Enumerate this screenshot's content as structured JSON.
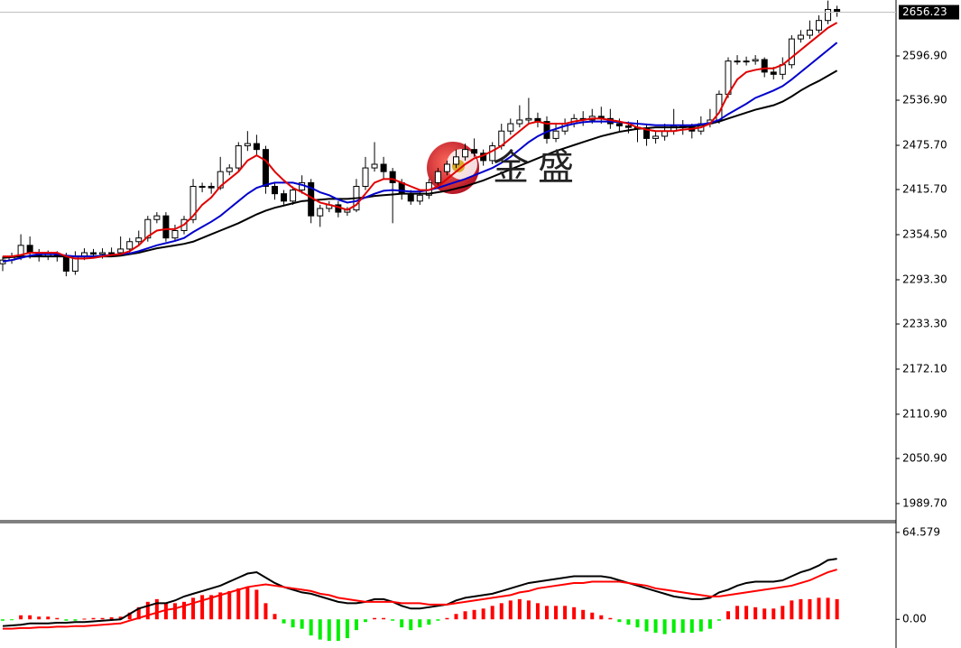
{
  "chart_data": [
    {
      "type": "candlestick",
      "ylim": [
        1966.4,
        2672.8
      ],
      "yticks": [
        {
          "value": 2596.9,
          "label": "2596.90"
        },
        {
          "value": 2536.9,
          "label": "2536.90"
        },
        {
          "value": 2475.7,
          "label": "2475.70"
        },
        {
          "value": 2415.7,
          "label": "2415.70"
        },
        {
          "value": 2354.5,
          "label": "2354.50"
        },
        {
          "value": 2293.3,
          "label": "2293.30"
        },
        {
          "value": 2233.3,
          "label": "2233.30"
        },
        {
          "value": 2172.1,
          "label": "2172.10"
        },
        {
          "value": 2110.9,
          "label": "2110.90"
        },
        {
          "value": 2050.9,
          "label": "2050.90"
        },
        {
          "value": 1989.7,
          "label": "1989.70"
        }
      ],
      "last_price": 2656.23,
      "watermark": "金盛",
      "up_color": "#ffffff",
      "down_color": "#000000",
      "open": [
        2315,
        2320,
        2325,
        2340,
        2330,
        2325,
        2328,
        2325,
        2305,
        2325,
        2330,
        2328,
        2330,
        2330,
        2335,
        2345,
        2350,
        2375,
        2380,
        2350,
        2360,
        2375,
        2420,
        2420,
        2418,
        2440,
        2445,
        2475,
        2478,
        2470,
        2420,
        2410,
        2400,
        2415,
        2425,
        2380,
        2390,
        2395,
        2385,
        2388,
        2420,
        2445,
        2450,
        2440,
        2425,
        2410,
        2400,
        2408,
        2425,
        2440,
        2450,
        2460,
        2470,
        2465,
        2455,
        2475,
        2495,
        2505,
        2510,
        2512,
        2508,
        2485,
        2495,
        2505,
        2512,
        2510,
        2515,
        2512,
        2505,
        2502,
        2500,
        2498,
        2485,
        2488,
        2495,
        2502,
        2500,
        2495,
        2505,
        2510,
        2545,
        2590,
        2590,
        2590,
        2592,
        2575,
        2572,
        2585,
        2620,
        2625,
        2632,
        2645,
        2660
      ],
      "high": [
        2325,
        2330,
        2355,
        2352,
        2335,
        2333,
        2332,
        2330,
        2332,
        2336,
        2335,
        2336,
        2337,
        2352,
        2350,
        2360,
        2380,
        2385,
        2385,
        2368,
        2380,
        2430,
        2425,
        2425,
        2460,
        2450,
        2480,
        2495,
        2490,
        2475,
        2425,
        2415,
        2420,
        2435,
        2430,
        2395,
        2400,
        2400,
        2392,
        2430,
        2460,
        2480,
        2460,
        2445,
        2430,
        2415,
        2415,
        2430,
        2445,
        2455,
        2470,
        2478,
        2485,
        2470,
        2480,
        2505,
        2512,
        2530,
        2540,
        2520,
        2515,
        2505,
        2512,
        2518,
        2522,
        2525,
        2528,
        2525,
        2512,
        2508,
        2510,
        2505,
        2495,
        2505,
        2525,
        2510,
        2505,
        2515,
        2525,
        2550,
        2595,
        2598,
        2596,
        2598,
        2595,
        2582,
        2595,
        2625,
        2632,
        2645,
        2652,
        2672,
        2665
      ],
      "low": [
        2305,
        2315,
        2320,
        2322,
        2318,
        2320,
        2318,
        2298,
        2300,
        2320,
        2322,
        2322,
        2324,
        2326,
        2330,
        2340,
        2345,
        2370,
        2345,
        2345,
        2355,
        2370,
        2412,
        2410,
        2415,
        2435,
        2440,
        2468,
        2462,
        2410,
        2402,
        2395,
        2395,
        2410,
        2370,
        2365,
        2385,
        2378,
        2380,
        2385,
        2415,
        2440,
        2430,
        2370,
        2402,
        2395,
        2395,
        2403,
        2420,
        2435,
        2445,
        2455,
        2460,
        2448,
        2450,
        2470,
        2490,
        2500,
        2505,
        2500,
        2478,
        2480,
        2490,
        2500,
        2502,
        2505,
        2505,
        2498,
        2495,
        2492,
        2480,
        2475,
        2478,
        2482,
        2490,
        2490,
        2485,
        2490,
        2500,
        2505,
        2540,
        2585,
        2584,
        2585,
        2568,
        2565,
        2565,
        2580,
        2615,
        2620,
        2628,
        2640,
        2650
      ],
      "close": [
        2320,
        2325,
        2340,
        2330,
        2325,
        2328,
        2325,
        2305,
        2325,
        2330,
        2328,
        2330,
        2330,
        2335,
        2345,
        2350,
        2375,
        2380,
        2350,
        2360,
        2375,
        2420,
        2420,
        2418,
        2440,
        2445,
        2475,
        2478,
        2470,
        2420,
        2410,
        2400,
        2415,
        2425,
        2380,
        2390,
        2395,
        2385,
        2388,
        2420,
        2445,
        2450,
        2440,
        2425,
        2410,
        2400,
        2408,
        2425,
        2440,
        2450,
        2460,
        2470,
        2465,
        2455,
        2475,
        2495,
        2505,
        2510,
        2512,
        2508,
        2485,
        2495,
        2505,
        2512,
        2510,
        2515,
        2512,
        2505,
        2502,
        2500,
        2498,
        2485,
        2488,
        2495,
        2502,
        2500,
        2495,
        2505,
        2510,
        2545,
        2590,
        2590,
        2590,
        2592,
        2575,
        2572,
        2585,
        2620,
        2625,
        2632,
        2645,
        2660,
        2656.23
      ],
      "series": [
        {
          "color": "#000000",
          "values": [
            2323,
            2324,
            2325,
            2325,
            2325,
            2325,
            2325,
            2325,
            2325,
            2325,
            2325,
            2325,
            2325,
            2326,
            2328,
            2330,
            2333,
            2336,
            2338,
            2340,
            2342,
            2345,
            2350,
            2355,
            2360,
            2365,
            2370,
            2376,
            2382,
            2387,
            2391,
            2394,
            2397,
            2400,
            2401,
            2402,
            2403,
            2403,
            2403,
            2404,
            2405,
            2407,
            2408,
            2409,
            2410,
            2410,
            2410,
            2410,
            2412,
            2414,
            2417,
            2420,
            2424,
            2428,
            2433,
            2438,
            2443,
            2448,
            2453,
            2458,
            2463,
            2468,
            2472,
            2476,
            2480,
            2484,
            2488,
            2491,
            2494,
            2496,
            2498,
            2499,
            2500,
            2500,
            2500,
            2500,
            2501,
            2503,
            2505,
            2508,
            2512,
            2516,
            2520,
            2524,
            2527,
            2530,
            2535,
            2542,
            2550,
            2557,
            2563,
            2570,
            2577
          ]
        },
        {
          "color": "#0000cc",
          "values": [
            2318,
            2320,
            2323,
            2326,
            2328,
            2328,
            2328,
            2326,
            2325,
            2325,
            2325,
            2326,
            2327,
            2328,
            2329,
            2332,
            2336,
            2340,
            2343,
            2346,
            2350,
            2358,
            2365,
            2372,
            2380,
            2390,
            2400,
            2410,
            2418,
            2422,
            2425,
            2425,
            2425,
            2422,
            2418,
            2412,
            2408,
            2402,
            2398,
            2400,
            2405,
            2410,
            2414,
            2415,
            2414,
            2413,
            2413,
            2415,
            2418,
            2422,
            2426,
            2430,
            2435,
            2440,
            2445,
            2452,
            2460,
            2470,
            2480,
            2488,
            2494,
            2498,
            2502,
            2505,
            2507,
            2508,
            2508,
            2508,
            2507,
            2506,
            2505,
            2504,
            2503,
            2503,
            2503,
            2503,
            2503,
            2504,
            2506,
            2510,
            2518,
            2525,
            2532,
            2540,
            2545,
            2550,
            2556,
            2565,
            2575,
            2585,
            2595,
            2605,
            2615
          ]
        },
        {
          "color": "#e00000",
          "values": [
            2325,
            2325,
            2327,
            2330,
            2330,
            2330,
            2330,
            2325,
            2322,
            2322,
            2323,
            2325,
            2327,
            2328,
            2332,
            2340,
            2352,
            2360,
            2362,
            2362,
            2368,
            2380,
            2395,
            2405,
            2420,
            2430,
            2440,
            2455,
            2462,
            2455,
            2440,
            2428,
            2418,
            2412,
            2405,
            2398,
            2395,
            2392,
            2388,
            2395,
            2410,
            2425,
            2430,
            2430,
            2425,
            2420,
            2415,
            2415,
            2420,
            2430,
            2440,
            2450,
            2458,
            2462,
            2468,
            2475,
            2485,
            2495,
            2505,
            2508,
            2505,
            2505,
            2505,
            2508,
            2510,
            2512,
            2512,
            2510,
            2508,
            2505,
            2500,
            2497,
            2495,
            2495,
            2495,
            2497,
            2498,
            2500,
            2505,
            2520,
            2545,
            2565,
            2575,
            2578,
            2580,
            2580,
            2585,
            2595,
            2605,
            2615,
            2625,
            2635,
            2642
          ]
        }
      ]
    },
    {
      "type": "macd",
      "ylim": [
        -21.3,
        71.9
      ],
      "yticks": [
        64.579,
        {
          "value": 0,
          "label": "0.00"
        }
      ],
      "positive_color": "#ff0000",
      "negative_color": "#00ee00",
      "values": [
        -1,
        -0.5,
        3,
        3,
        2,
        2,
        1,
        -1,
        -1,
        0.5,
        1,
        1,
        1.5,
        2,
        5,
        9,
        13,
        15,
        12,
        12,
        13,
        16,
        18,
        18,
        20,
        21,
        23,
        24,
        22,
        12,
        4,
        -3,
        -6,
        -7,
        -12,
        -15,
        -16,
        -16,
        -14,
        -8,
        -2,
        1,
        1,
        -1,
        -6,
        -8,
        -6,
        -4,
        -1,
        1,
        4,
        6,
        7,
        8,
        10,
        12,
        14,
        15,
        14,
        12,
        10,
        10,
        10,
        9,
        7,
        5,
        3,
        1,
        -2,
        -4,
        -6,
        -9,
        -10,
        -11,
        -10,
        -10,
        -10,
        -9,
        -7,
        -1,
        6,
        10,
        10,
        9,
        8,
        8,
        10,
        14,
        15,
        15,
        16,
        16,
        15
      ],
      "series": [
        {
          "color": "#000000",
          "values": [
            -5,
            -4.5,
            -4,
            -3,
            -3,
            -3,
            -2.5,
            -2.5,
            -2,
            -2,
            -1.5,
            -1,
            -0.5,
            0,
            4,
            8,
            10,
            12,
            12,
            14,
            17,
            19,
            21,
            23,
            25,
            28,
            31,
            34,
            35,
            31,
            27,
            24,
            22,
            20,
            19,
            17,
            15,
            13,
            12,
            12,
            13,
            15,
            15,
            13,
            10,
            8,
            8,
            9,
            10,
            11,
            14,
            16,
            17,
            18,
            19,
            21,
            23,
            25,
            27,
            28,
            29,
            30,
            31,
            32,
            32,
            32,
            32,
            31,
            29,
            27,
            25,
            23,
            21,
            19,
            17,
            16,
            15,
            15,
            16,
            20,
            22,
            25,
            27,
            28,
            28,
            28,
            29,
            32,
            35,
            37,
            40,
            44,
            45
          ]
        },
        {
          "color": "#ff0000",
          "values": [
            -7,
            -7,
            -6.5,
            -6.5,
            -6,
            -6,
            -5.5,
            -5.5,
            -5,
            -5,
            -4.5,
            -4,
            -3.5,
            -3,
            -1,
            1,
            3,
            5,
            7,
            8,
            10,
            12,
            14,
            16,
            18,
            20,
            22,
            24,
            25,
            26,
            25,
            24,
            23,
            22,
            21,
            19,
            18,
            16,
            15,
            14,
            13,
            13,
            13,
            13,
            12,
            12,
            12,
            11,
            11,
            11,
            12,
            13,
            14,
            15,
            16,
            17,
            18,
            20,
            21,
            23,
            24,
            25,
            26,
            27,
            27,
            28,
            28,
            28,
            28,
            27,
            26,
            25,
            23,
            22,
            21,
            20,
            19,
            18,
            17,
            17,
            18,
            19,
            20,
            21,
            22,
            23,
            24,
            25,
            27,
            29,
            32,
            35,
            37
          ]
        }
      ]
    }
  ]
}
